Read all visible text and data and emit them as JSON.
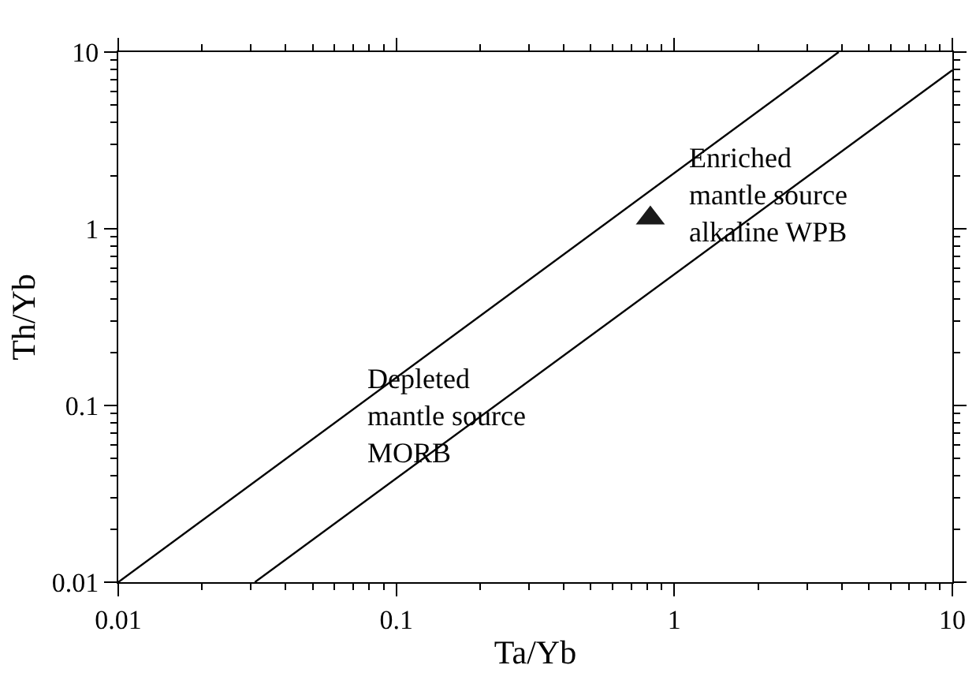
{
  "chart_data": {
    "type": "scatter",
    "xlabel": "Ta/Yb",
    "ylabel": "Th/Yb",
    "log": "xy",
    "grid": false,
    "xlim": [
      0.01,
      10
    ],
    "ylim": [
      0.01,
      10
    ],
    "xticks": [
      0.01,
      0.1,
      1,
      10
    ],
    "yticks": [
      0.01,
      0.1,
      1,
      10
    ],
    "series": [
      {
        "type": "line",
        "color": "#000000",
        "x": [
          0.01,
          3.9
        ],
        "values": [
          0.01,
          10
        ],
        "marker": "none",
        "line_style": "solid"
      },
      {
        "type": "line",
        "color": "#000000",
        "x": [
          0.031,
          10
        ],
        "values": [
          0.01,
          7.9
        ],
        "marker": "none",
        "line_style": "solid"
      },
      {
        "color": "#1a1a1a",
        "x": [
          0.82
        ],
        "values": [
          1.15
        ],
        "marker": "triangle"
      }
    ],
    "annotations": [
      "Enriched\nmantle source\nalkaline WPB",
      "Depleted\nmantle source\nMORB"
    ]
  }
}
